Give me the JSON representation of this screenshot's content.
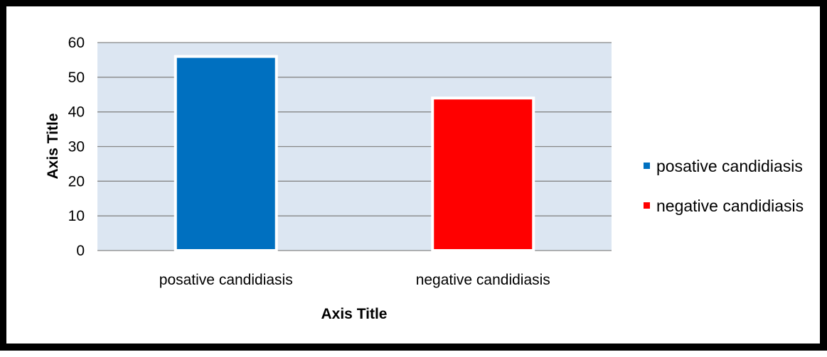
{
  "chart_data": {
    "type": "bar",
    "categories": [
      "posative candidiasis",
      "negative candidiasis"
    ],
    "values": [
      56,
      44
    ],
    "xlabel": "Axis Title",
    "ylabel": "Axis Title",
    "ylim": [
      0,
      60
    ],
    "yticks": [
      0,
      10,
      20,
      30,
      40,
      50,
      60
    ],
    "colors": [
      "#0070C0",
      "#FF0000"
    ],
    "plot_background": "#DCE6F2",
    "grid": true,
    "legend": {
      "position": "right",
      "entries": [
        "posative candidiasis",
        "negative candidiasis"
      ]
    }
  }
}
